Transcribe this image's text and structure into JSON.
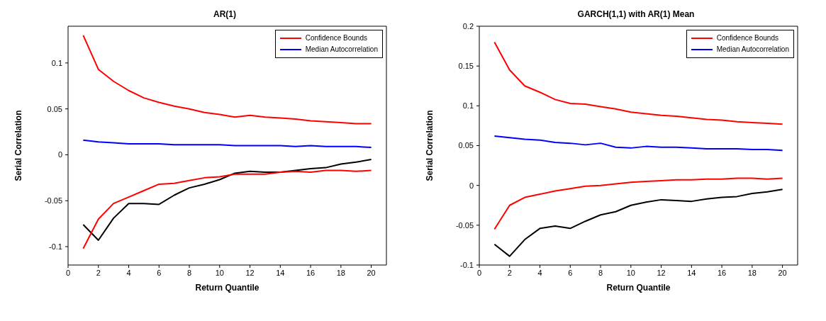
{
  "chart_data": [
    {
      "type": "line",
      "title": "AR(1)",
      "xlabel": "Return Quantile",
      "ylabel": "Serial Correlation",
      "x": [
        1,
        2,
        3,
        4,
        5,
        6,
        7,
        8,
        9,
        10,
        11,
        12,
        13,
        14,
        15,
        16,
        17,
        18,
        19,
        20
      ],
      "xlim": [
        0,
        21
      ],
      "xticks": [
        0,
        2,
        4,
        6,
        8,
        10,
        12,
        14,
        16,
        18,
        20
      ],
      "ylim": [
        -0.12,
        0.14
      ],
      "yticks": [
        -0.1,
        -0.05,
        0,
        0.05,
        0.1
      ],
      "grid": false,
      "legend": "top right",
      "marker": "none",
      "series": [
        {
          "name": "Confidence Bounds",
          "color": "#ff0000",
          "values": [
            0.13,
            0.093,
            0.08,
            0.07,
            0.062,
            0.057,
            0.053,
            0.05,
            0.046,
            0.044,
            0.041,
            0.043,
            0.041,
            0.04,
            0.039,
            0.037,
            0.036,
            0.035,
            0.034,
            0.034
          ]
        },
        {
          "name": "Median Autocorrelation",
          "color": "#0000ff",
          "values": [
            0.016,
            0.014,
            0.013,
            0.012,
            0.012,
            0.012,
            0.011,
            0.011,
            0.011,
            0.011,
            0.01,
            0.01,
            0.01,
            0.01,
            0.009,
            0.01,
            0.009,
            0.009,
            0.009,
            0.008
          ]
        },
        {
          "color": "#000000",
          "values": [
            -0.076,
            -0.093,
            -0.069,
            -0.053,
            -0.053,
            -0.054,
            -0.044,
            -0.036,
            -0.032,
            -0.027,
            -0.02,
            -0.018,
            -0.019,
            -0.019,
            -0.017,
            -0.015,
            -0.014,
            -0.01,
            -0.008,
            -0.005
          ]
        },
        {
          "color": "#ff0000",
          "values": [
            -0.102,
            -0.07,
            -0.053,
            -0.046,
            -0.039,
            -0.032,
            -0.031,
            -0.028,
            -0.025,
            -0.024,
            -0.021,
            -0.021,
            -0.021,
            -0.019,
            -0.018,
            -0.019,
            -0.017,
            -0.017,
            -0.018,
            -0.017
          ]
        }
      ]
    },
    {
      "type": "line",
      "title": "GARCH(1,1) with AR(1) Mean",
      "xlabel": "Return Quantile",
      "ylabel": "Serial Correlation",
      "x": [
        1,
        2,
        3,
        4,
        5,
        6,
        7,
        8,
        9,
        10,
        11,
        12,
        13,
        14,
        15,
        16,
        17,
        18,
        19,
        20
      ],
      "xlim": [
        0,
        21
      ],
      "xticks": [
        0,
        2,
        4,
        6,
        8,
        10,
        12,
        14,
        16,
        18,
        20
      ],
      "ylim": [
        -0.1,
        0.2
      ],
      "yticks": [
        -0.1,
        -0.05,
        0,
        0.05,
        0.1,
        0.15,
        0.2
      ],
      "grid": false,
      "legend": "top right",
      "marker": "none",
      "series": [
        {
          "name": "Confidence Bounds",
          "color": "#ff0000",
          "values": [
            0.18,
            0.145,
            0.125,
            0.117,
            0.108,
            0.103,
            0.102,
            0.099,
            0.096,
            0.092,
            0.09,
            0.088,
            0.087,
            0.085,
            0.083,
            0.082,
            0.08,
            0.079,
            0.078,
            0.077
          ]
        },
        {
          "name": "Median Autocorrelation",
          "color": "#0000ff",
          "values": [
            0.062,
            0.06,
            0.058,
            0.057,
            0.054,
            0.053,
            0.051,
            0.053,
            0.048,
            0.047,
            0.049,
            0.048,
            0.048,
            0.047,
            0.046,
            0.046,
            0.046,
            0.045,
            0.045,
            0.044
          ]
        },
        {
          "color": "#000000",
          "values": [
            -0.074,
            -0.089,
            -0.068,
            -0.054,
            -0.051,
            -0.054,
            -0.045,
            -0.037,
            -0.033,
            -0.025,
            -0.021,
            -0.018,
            -0.019,
            -0.02,
            -0.017,
            -0.015,
            -0.014,
            -0.01,
            -0.008,
            -0.005
          ]
        },
        {
          "color": "#ff0000",
          "values": [
            -0.055,
            -0.025,
            -0.015,
            -0.011,
            -0.007,
            -0.004,
            -0.001,
            0.0,
            0.002,
            0.004,
            0.005,
            0.006,
            0.007,
            0.007,
            0.008,
            0.008,
            0.009,
            0.009,
            0.008,
            0.009
          ]
        }
      ]
    }
  ]
}
